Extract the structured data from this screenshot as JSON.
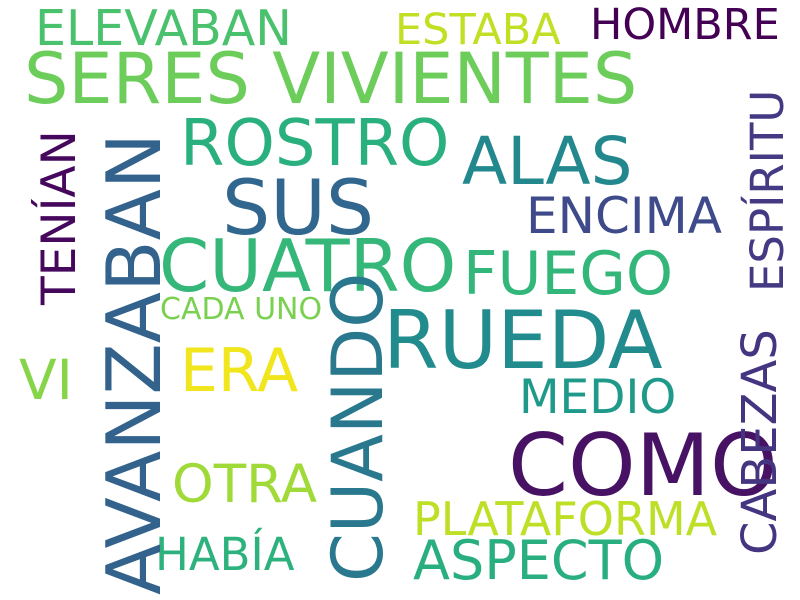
{
  "words": [
    {
      "key": "w01",
      "text": "SERES VIVIENTES",
      "color": "#6ccd5a"
    },
    {
      "key": "w02",
      "text": "COMO",
      "color": "#471164"
    },
    {
      "key": "w03",
      "text": "RUEDA",
      "color": "#228b8d"
    },
    {
      "key": "w04",
      "text": "CUATRO",
      "color": "#35b779"
    },
    {
      "key": "w05",
      "text": "SUS",
      "color": "#31668e"
    },
    {
      "key": "w06",
      "text": "ALAS",
      "color": "#23888e"
    },
    {
      "key": "w07",
      "text": "ROSTRO",
      "color": "#2ab07f"
    },
    {
      "key": "w08",
      "text": "FUEGO",
      "color": "#32b67a"
    },
    {
      "key": "w09",
      "text": "ENCIMA",
      "color": "#3e4a89"
    },
    {
      "key": "w10",
      "text": "ELEVABAN",
      "color": "#4ac16d"
    },
    {
      "key": "w11",
      "text": "ESTABA",
      "color": "#c2df23"
    },
    {
      "key": "w12",
      "text": "HOMBRE",
      "color": "#440154"
    },
    {
      "key": "w13",
      "text": "ERA",
      "color": "#f1e51d"
    },
    {
      "key": "w14",
      "text": "MEDIO",
      "color": "#1f9a8a"
    },
    {
      "key": "w15",
      "text": "OTRA",
      "color": "#a0da39"
    },
    {
      "key": "w16",
      "text": "PLATAFORMA",
      "color": "#bddf26"
    },
    {
      "key": "w17",
      "text": "ASPECTO",
      "color": "#29af7f"
    },
    {
      "key": "w18",
      "text": "HABÍA",
      "color": "#2db27d"
    },
    {
      "key": "w19",
      "text": "VI",
      "color": "#86d549"
    },
    {
      "key": "w20",
      "text": "CADA UNO",
      "color": "#7ad151"
    },
    {
      "key": "w21",
      "text": "AVANZABAN",
      "color": "#33638d"
    },
    {
      "key": "w22",
      "text": "CUANDO",
      "color": "#2a788e"
    },
    {
      "key": "w23",
      "text": "TENÍAN",
      "color": "#46085c"
    },
    {
      "key": "w24",
      "text": "ESPÍRITU",
      "color": "#443a83"
    },
    {
      "key": "w25",
      "text": "CABEZAS",
      "color": "#453581"
    }
  ]
}
